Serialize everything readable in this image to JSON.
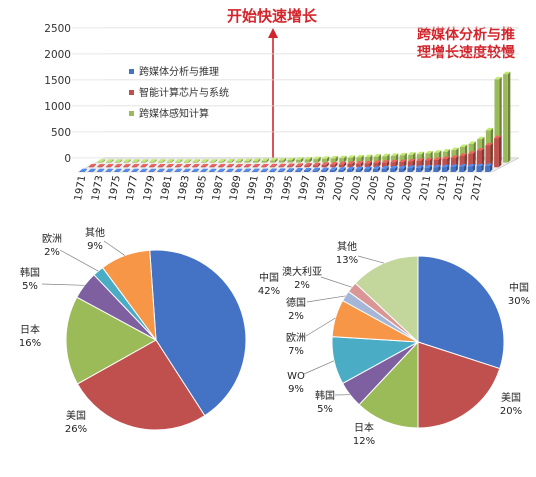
{
  "chart_data": [
    {
      "type": "bar",
      "annotations": {
        "start": "开始快速增长",
        "fast_line1": "跨媒体分析与推",
        "fast_line2": "理增长速度较慢"
      },
      "ylim": [
        0,
        2500
      ],
      "yticks": [
        0,
        500,
        1000,
        1500,
        2000,
        2500
      ],
      "x": [
        1971,
        1972,
        1973,
        1974,
        1975,
        1976,
        1977,
        1978,
        1979,
        1980,
        1981,
        1982,
        1983,
        1984,
        1985,
        1986,
        1987,
        1988,
        1989,
        1990,
        1991,
        1992,
        1993,
        1994,
        1995,
        1996,
        1997,
        1998,
        1999,
        2000,
        2001,
        2002,
        2003,
        2004,
        2005,
        2006,
        2007,
        2008,
        2009,
        2010,
        2011,
        2012,
        2013,
        2014,
        2015,
        2016,
        2017,
        2018
      ],
      "xtick_labels": [
        "1971",
        "1973",
        "1975",
        "1977",
        "1979",
        "1981",
        "1983",
        "1985",
        "1987",
        "1989",
        "1991",
        "1993",
        "1995",
        "1997",
        "1999",
        "2001",
        "2003",
        "2005",
        "2007",
        "2009",
        "2011",
        "2013",
        "2015",
        "2017"
      ],
      "legend_position": "top-left",
      "grid": true,
      "series": [
        {
          "name": "跨媒体分析与推理",
          "color": "#4472c4",
          "values": [
            2,
            2,
            3,
            3,
            4,
            4,
            5,
            5,
            6,
            6,
            7,
            8,
            9,
            10,
            11,
            12,
            13,
            14,
            15,
            16,
            17,
            18,
            20,
            22,
            25,
            28,
            30,
            33,
            36,
            40,
            44,
            48,
            52,
            56,
            60,
            64,
            68,
            72,
            76,
            80,
            84,
            88,
            92,
            96,
            100,
            104,
            108,
            112
          ]
        },
        {
          "name": "智能计算芯片与系统",
          "color": "#c0504d",
          "values": [
            1,
            1,
            2,
            2,
            2,
            3,
            3,
            4,
            4,
            5,
            6,
            7,
            8,
            9,
            10,
            11,
            12,
            13,
            14,
            15,
            16,
            18,
            20,
            24,
            28,
            34,
            40,
            46,
            52,
            58,
            64,
            70,
            76,
            82,
            88,
            94,
            100,
            110,
            120,
            130,
            140,
            160,
            180,
            220,
            260,
            320,
            420,
            560
          ]
        },
        {
          "name": "跨媒体感知计算",
          "color": "#9bbb59",
          "values": [
            2,
            3,
            3,
            4,
            4,
            5,
            6,
            7,
            8,
            9,
            10,
            12,
            14,
            16,
            18,
            20,
            23,
            26,
            30,
            34,
            38,
            42,
            48,
            54,
            60,
            66,
            72,
            78,
            84,
            90,
            98,
            106,
            114,
            122,
            130,
            140,
            150,
            160,
            175,
            190,
            210,
            240,
            300,
            360,
            450,
            620,
            1600,
            1700
          ]
        }
      ]
    },
    {
      "type": "pie",
      "slices": [
        {
          "label": "中国",
          "value": 42,
          "value_text": "42%",
          "color": "#4472c4"
        },
        {
          "label": "美国",
          "value": 26,
          "value_text": "26%",
          "color": "#c0504d"
        },
        {
          "label": "日本",
          "value": 16,
          "value_text": "16%",
          "color": "#9bbb59"
        },
        {
          "label": "韩国",
          "value": 5,
          "value_text": "5%",
          "color": "#7e5fa0"
        },
        {
          "label": "欧洲",
          "value": 2,
          "value_text": "2%",
          "color": "#4bacc6"
        },
        {
          "label": "其他",
          "value": 9,
          "value_text": "9%",
          "color": "#f79646"
        }
      ]
    },
    {
      "type": "pie",
      "slices": [
        {
          "label": "中国",
          "value": 30,
          "value_text": "30%",
          "color": "#4472c4"
        },
        {
          "label": "美国",
          "value": 20,
          "value_text": "20%",
          "color": "#c0504d"
        },
        {
          "label": "日本",
          "value": 12,
          "value_text": "12%",
          "color": "#9bbb59"
        },
        {
          "label": "韩国",
          "value": 5,
          "value_text": "5%",
          "color": "#7e5fa0"
        },
        {
          "label": "WO",
          "value": 9,
          "value_text": "9%",
          "color": "#4bacc6"
        },
        {
          "label": "欧洲",
          "value": 7,
          "value_text": "7%",
          "color": "#f79646"
        },
        {
          "label": "德国",
          "value": 2,
          "value_text": "2%",
          "color": "#a5b6d6"
        },
        {
          "label": "澳大利亚",
          "value": 2,
          "value_text": "2%",
          "color": "#d99694"
        },
        {
          "label": "其他",
          "value": 13,
          "value_text": "13%",
          "color": "#c3d69b"
        }
      ]
    }
  ]
}
